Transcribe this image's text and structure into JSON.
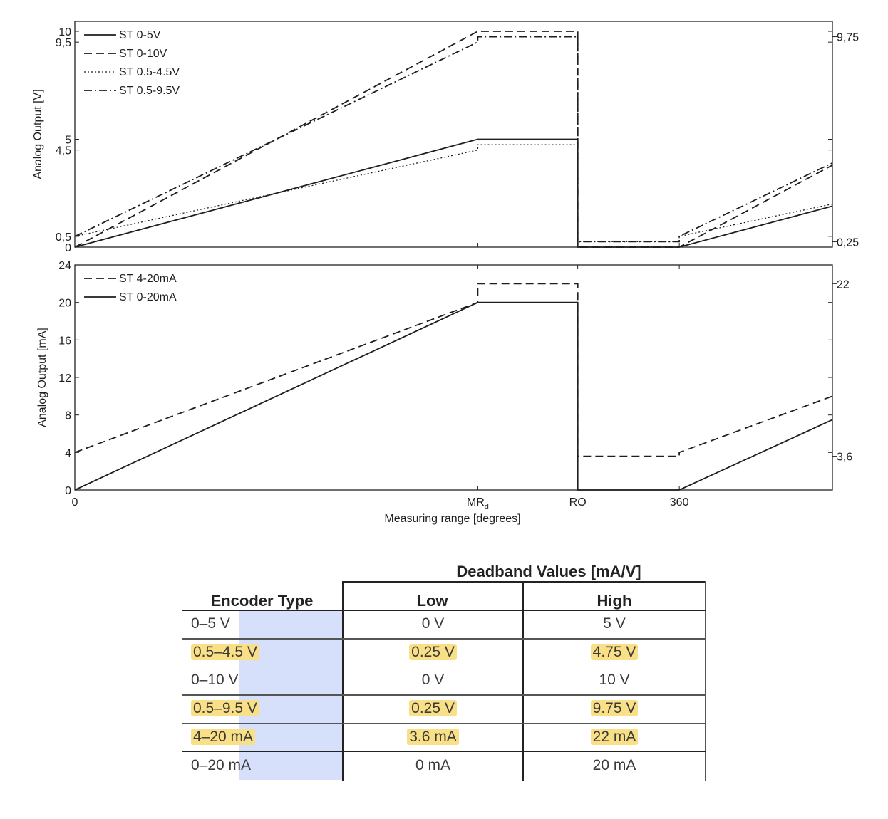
{
  "chart_data": [
    {
      "type": "line",
      "ylabel": "Analog Output [V]",
      "ylim": [
        0,
        10.3
      ],
      "xlim": [
        0,
        470
      ],
      "left_ticks": [
        "0",
        "0,5",
        "4,5",
        "5",
        "9,5",
        "10"
      ],
      "left_tick_values": [
        0,
        0.5,
        4.5,
        5,
        9.5,
        10
      ],
      "right_ticks": [
        "0,25",
        "9,75"
      ],
      "right_tick_values": [
        0.25,
        9.75
      ],
      "series": [
        {
          "name": "ST 0-5V",
          "dash": "solid",
          "x": [
            0,
            250,
            250,
            312,
            312,
            375,
            375,
            470
          ],
          "y": [
            0,
            5,
            5,
            5,
            0,
            0,
            0,
            1.9
          ]
        },
        {
          "name": "ST 0-10V",
          "dash": "dashed",
          "x": [
            0,
            250,
            250,
            312,
            312,
            375,
            375,
            470
          ],
          "y": [
            0,
            10,
            10,
            10,
            0,
            0,
            0,
            3.8
          ]
        },
        {
          "name": "ST 0.5-4.5V",
          "dash": "dotted",
          "x": [
            0,
            250,
            250,
            312,
            312,
            375,
            375,
            470
          ],
          "y": [
            0.5,
            4.5,
            4.75,
            4.75,
            0.25,
            0.25,
            0.5,
            2.0
          ]
        },
        {
          "name": "ST 0.5-9.5V",
          "dash": "dashdot",
          "x": [
            0,
            250,
            250,
            312,
            312,
            375,
            375,
            470
          ],
          "y": [
            0.5,
            9.5,
            9.75,
            9.75,
            0.25,
            0.25,
            0.5,
            3.9
          ]
        }
      ]
    },
    {
      "type": "line",
      "ylabel": "Analog Output [mA]",
      "xlabel": "Measuring range [degrees]",
      "ylim": [
        0,
        24
      ],
      "xlim": [
        0,
        470
      ],
      "left_ticks": [
        "0",
        "4",
        "8",
        "12",
        "16",
        "20",
        "24"
      ],
      "left_tick_values": [
        0,
        4,
        8,
        12,
        16,
        20,
        24
      ],
      "right_ticks": [
        "3,6",
        "22"
      ],
      "right_tick_values": [
        3.6,
        22
      ],
      "x_ticks": [
        "0",
        "MR",
        "RO",
        "360"
      ],
      "x_tick_values": [
        0,
        250,
        312,
        375
      ],
      "x_tick_subscript": {
        "MR": "d"
      },
      "series": [
        {
          "name": "ST 4-20mA",
          "dash": "dashed",
          "x": [
            0,
            250,
            250,
            312,
            312,
            375,
            375,
            470
          ],
          "y": [
            4,
            20,
            22,
            22,
            3.6,
            3.6,
            4,
            10
          ]
        },
        {
          "name": "ST 0-20mA",
          "dash": "solid",
          "x": [
            0,
            250,
            250,
            312,
            312,
            375,
            375,
            470
          ],
          "y": [
            0,
            20,
            20,
            20,
            0,
            0,
            0,
            7.5
          ]
        }
      ]
    }
  ],
  "table": {
    "group_header": "Deadband Values [mA/V]",
    "headers": [
      "Encoder Type",
      "Low",
      "High"
    ],
    "rows": [
      {
        "type": "0–5 V",
        "low": "0 V",
        "high": "5 V",
        "highlight": false
      },
      {
        "type": "0.5–4.5 V",
        "low": "0.25 V",
        "high": "4.75 V",
        "highlight": true
      },
      {
        "type": "0–10 V",
        "low": "0 V",
        "high": "10 V",
        "highlight": false
      },
      {
        "type": "0.5–9.5 V",
        "low": "0.25 V",
        "high": "9.75 V",
        "highlight": true
      },
      {
        "type": "4–20 mA",
        "low": "3.6 mA",
        "high": "22 mA",
        "highlight": true
      },
      {
        "type": "0–20 mA",
        "low": "0 mA",
        "high": "20 mA",
        "highlight": false
      }
    ]
  },
  "colors": {
    "ink": "#1e1e1e",
    "highlight": "#f9df86",
    "selection": "#d6e0fa"
  }
}
